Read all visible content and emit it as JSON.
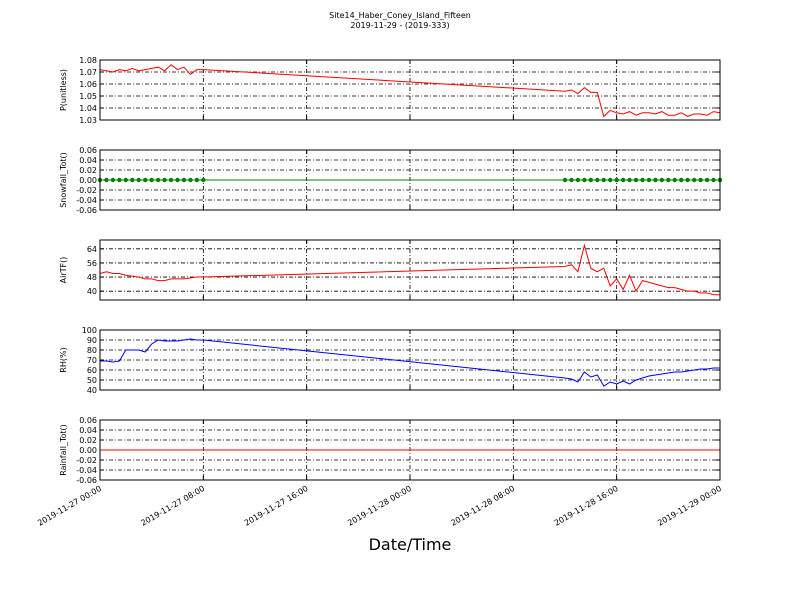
{
  "figure": {
    "title": "Site14_Haber_Coney_Island_Fifteen",
    "subtitle": "2019-11-29 - (2019-333)",
    "xlabel": "Date/Time",
    "grid": true,
    "xlim": [
      "2019-11-27 00:00",
      "2019-11-29 00:00"
    ],
    "xticks": [
      "2019-11-27 00:00",
      "2019-11-27 08:00",
      "2019-11-27 16:00",
      "2019-11-28 00:00",
      "2019-11-28 08:00",
      "2019-11-28 16:00",
      "2019-11-29 00:00"
    ],
    "x": [
      "2019-11-27 00:00",
      "2019-11-27 00:30",
      "2019-11-27 01:00",
      "2019-11-27 01:30",
      "2019-11-27 02:00",
      "2019-11-27 02:30",
      "2019-11-27 03:00",
      "2019-11-27 03:30",
      "2019-11-27 04:00",
      "2019-11-27 04:30",
      "2019-11-27 05:00",
      "2019-11-27 05:30",
      "2019-11-27 06:00",
      "2019-11-27 06:30",
      "2019-11-27 07:00",
      "2019-11-27 07:30",
      "2019-11-27 08:00",
      "2019-11-28 12:00",
      "2019-11-28 12:30",
      "2019-11-28 13:00",
      "2019-11-28 13:30",
      "2019-11-28 14:00",
      "2019-11-28 14:30",
      "2019-11-28 15:00",
      "2019-11-28 15:30",
      "2019-11-28 16:00",
      "2019-11-28 16:30",
      "2019-11-28 17:00",
      "2019-11-28 17:30",
      "2019-11-28 18:00",
      "2019-11-28 18:30",
      "2019-11-28 19:00",
      "2019-11-28 19:30",
      "2019-11-28 20:00",
      "2019-11-28 20:30",
      "2019-11-28 21:00",
      "2019-11-28 21:30",
      "2019-11-28 22:00",
      "2019-11-28 22:30",
      "2019-11-28 23:00",
      "2019-11-28 23:30",
      "2019-11-29 00:00"
    ]
  },
  "chart_data": [
    {
      "type": "line",
      "ylabel": "P(unitless)",
      "ylim": [
        1.03,
        1.08
      ],
      "yticks": [
        1.03,
        1.04,
        1.05,
        1.06,
        1.07,
        1.08
      ],
      "series": [
        {
          "color": "#ff0000",
          "markers": false,
          "values": [
            1.072,
            1.071,
            1.07,
            1.072,
            1.071,
            1.073,
            1.071,
            1.072,
            1.073,
            1.074,
            1.071,
            1.076,
            1.072,
            1.074,
            1.068,
            1.072,
            1.072,
            1.054,
            1.055,
            1.052,
            1.057,
            1.053,
            1.053,
            1.033,
            1.038,
            1.036,
            1.035,
            1.037,
            1.034,
            1.036,
            1.036,
            1.035,
            1.037,
            1.034,
            1.034,
            1.036,
            1.033,
            1.035,
            1.035,
            1.034,
            1.037,
            1.036
          ]
        }
      ]
    },
    {
      "type": "line",
      "ylabel": "Snowfall_Tot()",
      "ylim": [
        -0.06,
        0.06
      ],
      "yticks": [
        -0.06,
        -0.04,
        -0.02,
        {
          "value": 0,
          "label": "0.00"
        },
        0.02,
        0.04,
        0.06
      ],
      "series": [
        {
          "color": "#008000",
          "markers": true,
          "values": [
            0,
            0,
            0,
            0,
            0,
            0,
            0,
            0,
            0,
            0,
            0,
            0,
            0,
            0,
            0,
            0,
            0,
            0,
            0,
            0,
            0,
            0,
            0,
            0,
            0,
            0,
            0,
            0,
            0,
            0,
            0,
            0,
            0,
            0,
            0,
            0,
            0,
            0,
            0,
            0,
            0,
            0
          ]
        }
      ]
    },
    {
      "type": "line",
      "ylabel": "AirTF()",
      "ylim": [
        35,
        69
      ],
      "yticks": [
        40,
        48,
        56,
        64
      ],
      "series": [
        {
          "color": "#ff0000",
          "markers": false,
          "values": [
            50,
            51,
            50,
            50,
            49,
            48.5,
            48,
            47,
            47,
            46,
            46,
            47,
            47,
            47,
            47.5,
            48,
            48,
            54,
            55,
            51,
            66,
            53,
            51,
            53,
            43,
            47,
            41,
            49,
            40,
            46,
            45,
            44,
            43,
            42,
            42,
            41,
            40,
            40,
            39,
            39,
            38,
            38
          ]
        }
      ]
    },
    {
      "type": "line",
      "ylabel": "RH(%)",
      "ylim": [
        40,
        100
      ],
      "yticks": [
        40,
        50,
        60,
        70,
        80,
        90,
        100
      ],
      "series": [
        {
          "color": "#0000ff",
          "markers": false,
          "values": [
            69,
            69,
            68,
            69,
            80,
            80,
            80,
            78,
            86,
            90,
            89,
            89,
            89,
            90,
            91,
            90,
            90,
            52,
            51,
            48,
            58,
            53,
            55,
            44,
            48,
            46,
            49,
            46,
            50,
            52,
            54,
            55,
            56,
            57,
            58,
            58,
            59,
            60,
            61,
            61,
            62,
            62
          ]
        }
      ]
    },
    {
      "type": "line",
      "ylabel": "Rainfall_Tot()",
      "ylim": [
        -0.06,
        0.06
      ],
      "yticks": [
        -0.06,
        -0.04,
        -0.02,
        {
          "value": 0,
          "label": "0.00"
        },
        0.02,
        0.04,
        0.06
      ],
      "series": [
        {
          "color": "#ff0000",
          "markers": false,
          "values": [
            0,
            0,
            0,
            0,
            0,
            0,
            0,
            0,
            0,
            0,
            0,
            0,
            0,
            0,
            0,
            0,
            0,
            0,
            0,
            0,
            0,
            0,
            0,
            0,
            0,
            0,
            0,
            0,
            0,
            0,
            0,
            0,
            0,
            0,
            0,
            0,
            0,
            0,
            0,
            0,
            0,
            0
          ]
        }
      ]
    }
  ]
}
